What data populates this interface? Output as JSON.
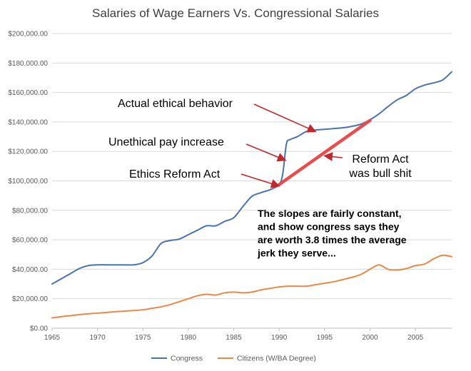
{
  "chart_data": {
    "type": "line",
    "title": "Salaries of Wage Earners Vs. Congressional Salaries",
    "xlabel": "",
    "ylabel": "",
    "xlim": [
      1965,
      2009
    ],
    "ylim": [
      0,
      200000
    ],
    "x_ticks": [
      "1965",
      "1970",
      "1975",
      "1980",
      "1985",
      "1990",
      "1995",
      "2000",
      "2005"
    ],
    "y_ticks": [
      "$0.00",
      "$20,000.00",
      "$40,000.00",
      "$60,000.00",
      "$80,000.00",
      "$100,000.00",
      "$120,000.00",
      "$140,000.00",
      "$160,000.00",
      "$180,000.00",
      "$200,000.00"
    ],
    "grid": true,
    "legend_position": "bottom",
    "series": [
      {
        "name": "Congress",
        "color": "#4a72b0",
        "x": [
          1965,
          1966,
          1967,
          1968,
          1969,
          1970,
          1971,
          1972,
          1973,
          1974,
          1975,
          1976,
          1977,
          1978,
          1979,
          1980,
          1981,
          1982,
          1983,
          1984,
          1985,
          1986,
          1987,
          1988,
          1989,
          1990,
          1990.4,
          1990.8,
          1991.2,
          1992,
          1993,
          1994,
          1995,
          1996,
          1997,
          1998,
          1999,
          2000,
          2001,
          2002,
          2003,
          2004,
          2005,
          2006,
          2007,
          2008,
          2009
        ],
        "y": [
          30000,
          33500,
          37000,
          40500,
          42500,
          43000,
          43000,
          43000,
          43000,
          43000,
          44500,
          49000,
          57500,
          59500,
          60500,
          63500,
          66500,
          69500,
          69500,
          72500,
          75000,
          82500,
          89500,
          92000,
          94000,
          97500,
          105000,
          125000,
          128000,
          130000,
          133500,
          134500,
          135000,
          135500,
          136000,
          137000,
          138500,
          141500,
          145500,
          150500,
          155000,
          158000,
          162500,
          165000,
          166500,
          168500,
          174000
        ]
      },
      {
        "name": "Citizens (W/BA Degree)",
        "color": "#e8884a",
        "x": [
          1965,
          1966,
          1967,
          1968,
          1969,
          1970,
          1971,
          1972,
          1973,
          1974,
          1975,
          1976,
          1977,
          1978,
          1979,
          1980,
          1981,
          1982,
          1983,
          1984,
          1985,
          1986,
          1987,
          1988,
          1989,
          1990,
          1991,
          1992,
          1993,
          1994,
          1995,
          1996,
          1997,
          1998,
          1999,
          2000,
          2001,
          2002,
          2003,
          2004,
          2005,
          2006,
          2007,
          2008,
          2009
        ],
        "y": [
          7000,
          7800,
          8500,
          9200,
          9800,
          10200,
          10700,
          11200,
          11600,
          12000,
          12500,
          13500,
          14500,
          16000,
          18000,
          20000,
          22000,
          23000,
          22500,
          24000,
          24500,
          24000,
          24500,
          26000,
          27000,
          28000,
          28500,
          28500,
          28500,
          29500,
          30500,
          31500,
          33000,
          34500,
          36500,
          40000,
          43000,
          40000,
          39500,
          40500,
          42500,
          43500,
          47000,
          49500,
          48500
        ]
      }
    ],
    "overlay_line": {
      "color": "#e84c4c",
      "x": [
        1990,
        2000
      ],
      "y": [
        97500,
        141000
      ]
    },
    "annotations": [
      {
        "label": "Actual ethical behavior",
        "arrow_to": {
          "x": 1994,
          "y": 133500
        }
      },
      {
        "label": "Unethical pay increase",
        "arrow_to": {
          "x": 1990.7,
          "y": 114000
        }
      },
      {
        "label": "Ethics Reform Act",
        "arrow_to": {
          "x": 1990,
          "y": 96500
        }
      },
      {
        "label_lines": [
          "Reform Act",
          "was bull shit"
        ],
        "arrow_to": {
          "x": 1995,
          "y": 117000
        }
      }
    ],
    "note_lines": [
      "The slopes are fairly constant,",
      "and  show congress says they",
      "are worth 3.8 times the average",
      "jerk they serve..."
    ]
  }
}
